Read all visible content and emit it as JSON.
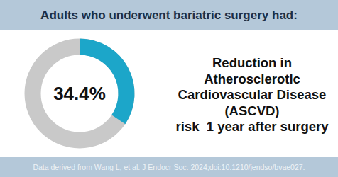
{
  "chart_data": {
    "type": "donut",
    "title": "Adults who underwent bariatric surgery had:",
    "values": [
      34.4
    ],
    "value_labels": [
      "34.4%"
    ],
    "data_labels": true,
    "colors": [
      "#1ca6c9"
    ],
    "ylim": [
      0,
      100
    ],
    "annotation": [
      "Reduction in",
      "Atherosclerotic",
      "Cardiovascular Disease",
      "(ASCVD)",
      "risk  1 year after surgery"
    ],
    "source": "Data derived from Wang L, et al. J Endocr Soc. 2024;doi:10.1210/jendso/bvae027."
  }
}
